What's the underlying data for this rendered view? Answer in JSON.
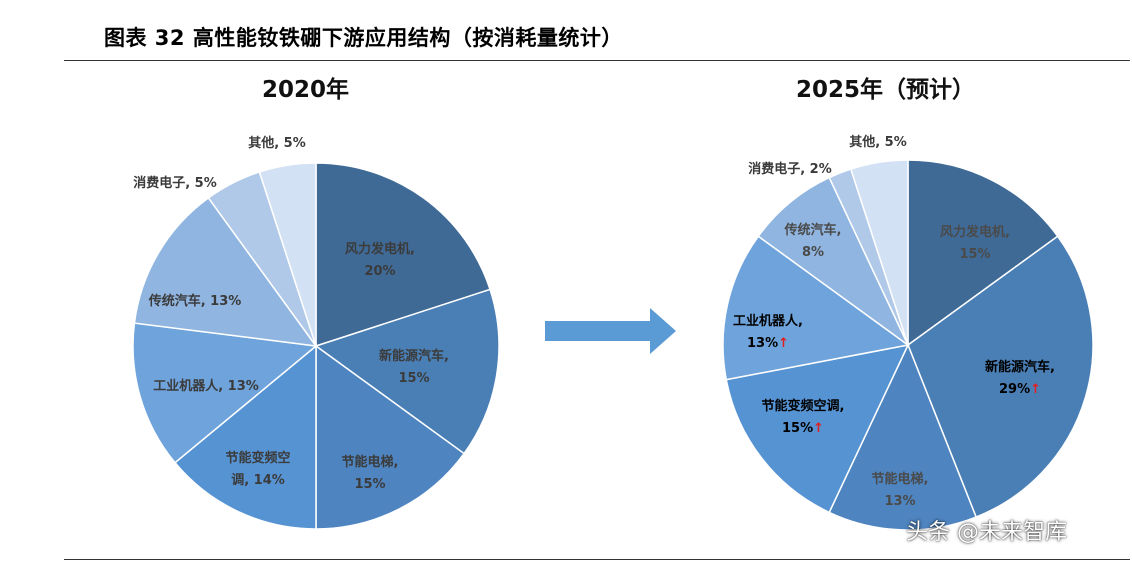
{
  "figure_title": "图表 32 高性能钕铁硼下游应用结构（按消耗量统计）",
  "watermark": "头条 @未来智库",
  "chart_data": [
    {
      "type": "pie",
      "title": "2020年",
      "slices": [
        {
          "name": "风力发电机",
          "value": 20,
          "label": [
            "风力发电机,",
            "20%"
          ],
          "color": "#3f6a96",
          "text_color": "#3b3b3b",
          "arrow": false
        },
        {
          "name": "新能源汽车",
          "value": 15,
          "label": [
            "新能源汽车,",
            "15%"
          ],
          "color": "#4a7fb5",
          "text_color": "#3b3b3b",
          "arrow": false
        },
        {
          "name": "节能电梯",
          "value": 15,
          "label": [
            "节能电梯,",
            "15%"
          ],
          "color": "#4e84c0",
          "text_color": "#3b3b3b",
          "arrow": false
        },
        {
          "name": "节能变频空调",
          "value": 14,
          "label": [
            "节能变频空",
            "调, 14%"
          ],
          "color": "#5693d3",
          "text_color": "#3b3b3b",
          "arrow": false
        },
        {
          "name": "工业机器人",
          "value": 13,
          "label": [
            "工业机器人, 13%"
          ],
          "color": "#6ea3dc",
          "text_color": "#3b3b3b",
          "arrow": false
        },
        {
          "name": "传统汽车",
          "value": 13,
          "label": [
            "传统汽车, 13%"
          ],
          "color": "#8fb5e0",
          "text_color": "#3b3b3b",
          "arrow": false
        },
        {
          "name": "消费电子",
          "value": 5,
          "label": [
            "消费电子, 5%"
          ],
          "color": "#b0c9e9",
          "text_color": "#3b3b3b",
          "arrow": false
        },
        {
          "name": "其他",
          "value": 5,
          "label": [
            "其他, 5%"
          ],
          "color": "#d3e1f4",
          "text_color": "#3b3b3b",
          "arrow": false
        }
      ]
    },
    {
      "type": "pie",
      "title": "2025年（预计）",
      "slices": [
        {
          "name": "风力发电机",
          "value": 15,
          "label": [
            "风力发电机,",
            "15%"
          ],
          "color": "#3f6a96",
          "text_color": "#4a4a4a",
          "arrow": false
        },
        {
          "name": "新能源汽车",
          "value": 29,
          "label": [
            "新能源汽车,",
            "29%"
          ],
          "color": "#4a7fb5",
          "text_color": "#000000",
          "arrow": true
        },
        {
          "name": "节能电梯",
          "value": 13,
          "label": [
            "节能电梯,",
            "13%"
          ],
          "color": "#4e84c0",
          "text_color": "#4a4a4a",
          "arrow": false
        },
        {
          "name": "节能变频空调",
          "value": 15,
          "label": [
            "节能变频空调,",
            "15%"
          ],
          "color": "#5693d3",
          "text_color": "#000000",
          "arrow": true
        },
        {
          "name": "工业机器人",
          "value": 13,
          "label": [
            "工业机器人,",
            "13%"
          ],
          "color": "#6ea3dc",
          "text_color": "#000000",
          "arrow": true
        },
        {
          "name": "传统汽车",
          "value": 8,
          "label": [
            "传统汽车,",
            "8%"
          ],
          "color": "#8fb5e0",
          "text_color": "#4a4a4a",
          "arrow": false
        },
        {
          "name": "消费电子",
          "value": 2,
          "label": [
            "消费电子, 2%"
          ],
          "color": "#b0c9e9",
          "text_color": "#3b3b3b",
          "arrow": false
        },
        {
          "name": "其他",
          "value": 5,
          "label": [
            "其他, 5%"
          ],
          "color": "#d3e1f4",
          "text_color": "#3b3b3b",
          "arrow": false
        }
      ]
    }
  ],
  "arrow_color": "#5b9bd5",
  "up_arrow_color": "#e02020"
}
